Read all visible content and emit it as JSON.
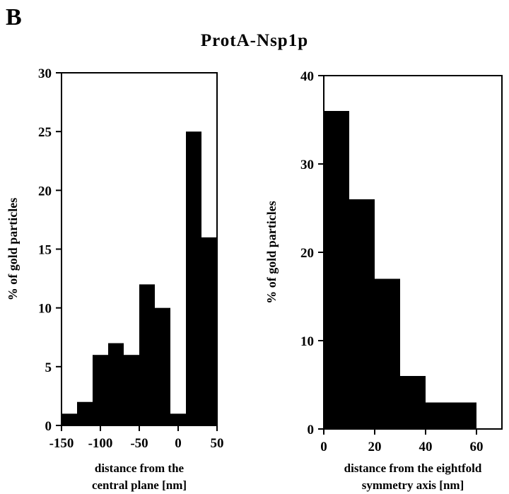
{
  "figure": {
    "panel_label": "B",
    "title": "ProtA-Nsp1p"
  },
  "chart_data": [
    {
      "type": "bar",
      "name": "left-histogram",
      "ylabel": "%  of  gold  particles",
      "xlabel_lines": [
        "distance   from   the",
        "central   plane   [nm]"
      ],
      "xlim": [
        -150,
        50
      ],
      "ylim": [
        0,
        30
      ],
      "xticks": [
        -150,
        -100,
        -50,
        0,
        50
      ],
      "xtick_labels": [
        "-150",
        "-100",
        "-50",
        "0",
        "50"
      ],
      "yticks": [
        0,
        5,
        10,
        15,
        20,
        25,
        30
      ],
      "ytick_labels": [
        "0",
        "5",
        "10",
        "15",
        "20",
        "25",
        "30"
      ],
      "bins": [
        {
          "start": -150,
          "end": -130,
          "value": 1
        },
        {
          "start": -130,
          "end": -110,
          "value": 2
        },
        {
          "start": -110,
          "end": -90,
          "value": 6
        },
        {
          "start": -90,
          "end": -70,
          "value": 7
        },
        {
          "start": -70,
          "end": -50,
          "value": 6
        },
        {
          "start": -50,
          "end": -30,
          "value": 12
        },
        {
          "start": -30,
          "end": -10,
          "value": 10
        },
        {
          "start": -10,
          "end": 10,
          "value": 1
        },
        {
          "start": 10,
          "end": 30,
          "value": 25
        },
        {
          "start": 30,
          "end": 50,
          "value": 16
        }
      ]
    },
    {
      "type": "bar",
      "name": "right-histogram",
      "ylabel": "%  of  gold  particles",
      "xlabel_lines": [
        "distance    from    the    eightfold",
        "symmetry   axis  [nm]"
      ],
      "xlim": [
        0,
        70
      ],
      "ylim": [
        0,
        40
      ],
      "xticks": [
        0,
        20,
        40,
        60
      ],
      "xtick_labels": [
        "0",
        "20",
        "40",
        "60"
      ],
      "yticks": [
        0,
        10,
        20,
        30,
        40
      ],
      "ytick_labels": [
        "0",
        "10",
        "20",
        "30",
        "40"
      ],
      "bins": [
        {
          "start": 0,
          "end": 10,
          "value": 36
        },
        {
          "start": 10,
          "end": 20,
          "value": 26
        },
        {
          "start": 20,
          "end": 30,
          "value": 17
        },
        {
          "start": 30,
          "end": 40,
          "value": 6
        },
        {
          "start": 40,
          "end": 50,
          "value": 3
        },
        {
          "start": 50,
          "end": 60,
          "value": 3
        }
      ]
    }
  ]
}
